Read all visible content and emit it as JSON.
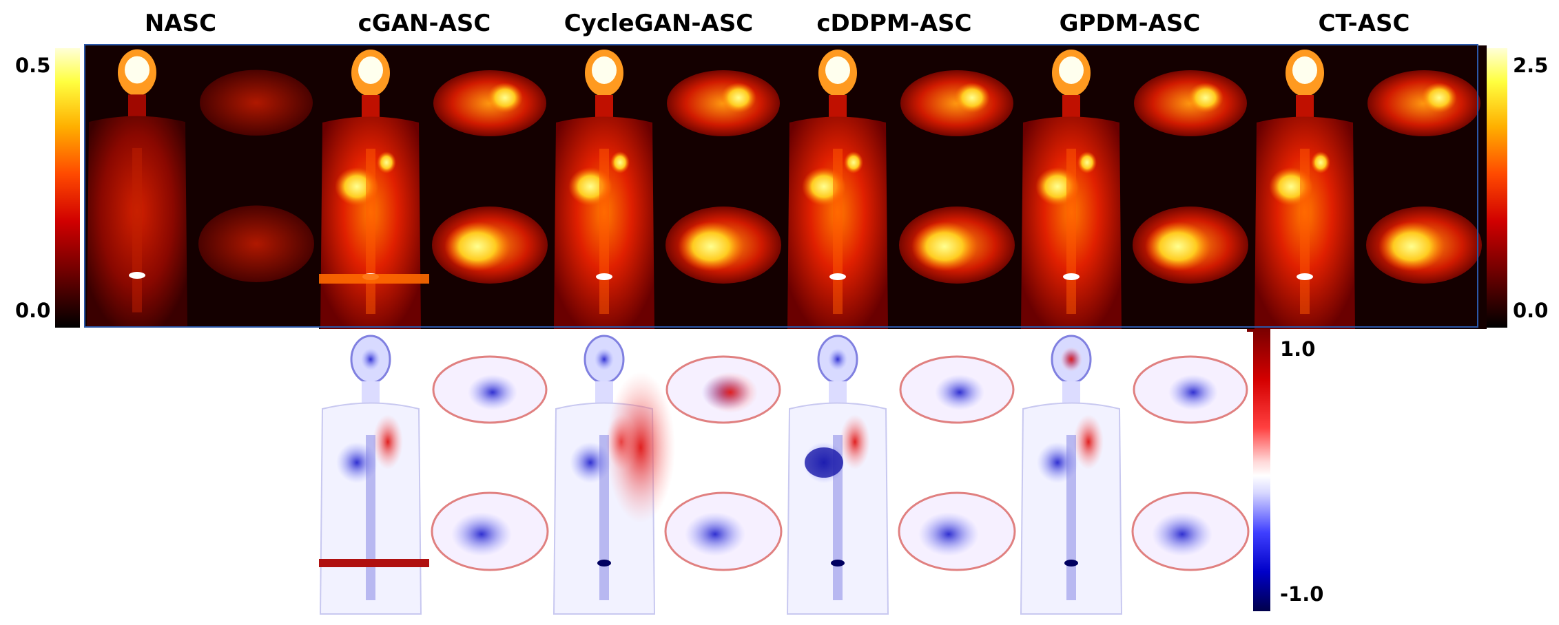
{
  "column_titles": [
    "NASC",
    "cGAN-ASC",
    "CycleGAN-ASC",
    "cDDPM-ASC",
    "GPDM-ASC",
    "CT-ASC"
  ],
  "pet_colorbar_left": {
    "max": "0.5",
    "min": "0.0",
    "colormap": "hot"
  },
  "pet_colorbar_right": {
    "max": "2.5",
    "min": "0.0",
    "colormap": "hot"
  },
  "diff_colorbar": {
    "max": "1.0",
    "min": "-1.0",
    "colormap": "seismic"
  },
  "colors": {
    "frame": "#2b57a8",
    "pet_bg": "#140000",
    "diff_bg": "#ffffff"
  }
}
